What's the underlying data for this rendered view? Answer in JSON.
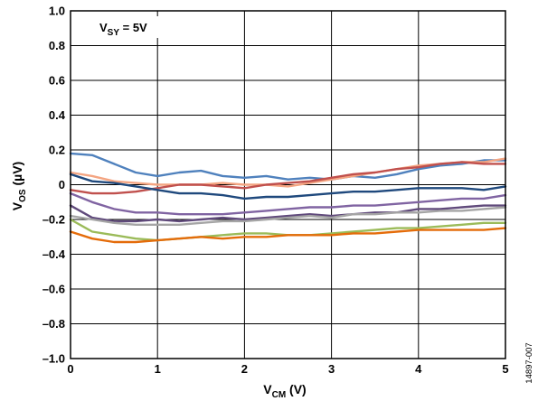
{
  "figure_id": "14897-007",
  "chart_data": {
    "type": "line",
    "xlabel": {
      "main": "V",
      "sub": "CM",
      "suffix": " (V)"
    },
    "ylabel": {
      "main": "V",
      "sub": "OS",
      "suffix": " (µV)"
    },
    "annotation": {
      "main": "V",
      "sub": "SY",
      "suffix": " = 5V"
    },
    "xlim": [
      0,
      5
    ],
    "ylim": [
      -1.0,
      1.0
    ],
    "x_ticks": [
      0,
      1,
      2,
      3,
      4,
      5
    ],
    "x_tick_labels": [
      "0",
      "1",
      "2",
      "3",
      "4",
      "5"
    ],
    "y_ticks": [
      1.0,
      0.8,
      0.6,
      0.4,
      0.2,
      0,
      -0.2,
      -0.4,
      -0.6,
      -0.8,
      -1.0
    ],
    "y_tick_labels": [
      "1.0",
      "0.8",
      "0.6",
      "0.4",
      "0.2",
      "0",
      "–0.2",
      "–0.4",
      "–0.6",
      "–0.8",
      "–1.0"
    ],
    "grid": true,
    "legend": "none",
    "x": [
      0,
      0.25,
      0.5,
      0.75,
      1.0,
      1.25,
      1.5,
      1.75,
      2.0,
      2.25,
      2.5,
      2.75,
      3.0,
      3.25,
      3.5,
      3.75,
      4.0,
      4.25,
      4.5,
      4.75,
      5.0
    ],
    "series": [
      {
        "color": "#4f81bd",
        "values": [
          0.18,
          0.17,
          0.12,
          0.07,
          0.05,
          0.07,
          0.08,
          0.05,
          0.04,
          0.05,
          0.03,
          0.04,
          0.03,
          0.05,
          0.04,
          0.06,
          0.09,
          0.11,
          0.12,
          0.14,
          0.14
        ]
      },
      {
        "color": "#f4a582",
        "values": [
          0.07,
          0.05,
          0.02,
          0.01,
          0.0,
          0.0,
          0.0,
          0.01,
          0.0,
          0.0,
          -0.01,
          0.01,
          0.03,
          0.05,
          0.07,
          0.09,
          0.11,
          0.12,
          0.13,
          0.13,
          0.15
        ]
      },
      {
        "color": "#c0504d",
        "values": [
          -0.03,
          -0.05,
          -0.05,
          -0.04,
          -0.02,
          0.0,
          0.0,
          -0.01,
          -0.02,
          0.0,
          0.01,
          0.02,
          0.04,
          0.06,
          0.07,
          0.09,
          0.1,
          0.12,
          0.13,
          0.12,
          0.12
        ]
      },
      {
        "color": "#1f497d",
        "values": [
          0.06,
          0.02,
          0.01,
          -0.01,
          -0.03,
          -0.05,
          -0.05,
          -0.06,
          -0.08,
          -0.07,
          -0.07,
          -0.06,
          -0.05,
          -0.04,
          -0.04,
          -0.03,
          -0.02,
          -0.02,
          -0.02,
          -0.03,
          -0.01
        ]
      },
      {
        "color": "#8064a2",
        "values": [
          -0.05,
          -0.1,
          -0.14,
          -0.16,
          -0.16,
          -0.17,
          -0.17,
          -0.17,
          -0.16,
          -0.15,
          -0.14,
          -0.13,
          -0.13,
          -0.12,
          -0.12,
          -0.11,
          -0.1,
          -0.09,
          -0.08,
          -0.08,
          -0.06
        ]
      },
      {
        "color": "#604a7b",
        "values": [
          -0.12,
          -0.19,
          -0.21,
          -0.21,
          -0.2,
          -0.21,
          -0.2,
          -0.19,
          -0.2,
          -0.19,
          -0.18,
          -0.17,
          -0.18,
          -0.17,
          -0.16,
          -0.16,
          -0.14,
          -0.14,
          -0.13,
          -0.12,
          -0.12
        ]
      },
      {
        "color": "#a5a5a5",
        "values": [
          -0.18,
          -0.2,
          -0.22,
          -0.23,
          -0.23,
          -0.23,
          -0.22,
          -0.21,
          -0.21,
          -0.2,
          -0.19,
          -0.18,
          -0.19,
          -0.17,
          -0.17,
          -0.16,
          -0.16,
          -0.15,
          -0.15,
          -0.14,
          -0.13
        ]
      },
      {
        "color": "#9bbb59",
        "values": [
          -0.2,
          -0.27,
          -0.29,
          -0.31,
          -0.32,
          -0.31,
          -0.3,
          -0.29,
          -0.28,
          -0.28,
          -0.29,
          -0.29,
          -0.28,
          -0.27,
          -0.26,
          -0.25,
          -0.25,
          -0.24,
          -0.23,
          -0.22,
          -0.22
        ]
      },
      {
        "color": "#e46c0a",
        "values": [
          -0.27,
          -0.31,
          -0.33,
          -0.33,
          -0.32,
          -0.31,
          -0.3,
          -0.31,
          -0.3,
          -0.3,
          -0.29,
          -0.29,
          -0.29,
          -0.28,
          -0.28,
          -0.27,
          -0.26,
          -0.26,
          -0.26,
          -0.26,
          -0.25
        ]
      }
    ]
  }
}
